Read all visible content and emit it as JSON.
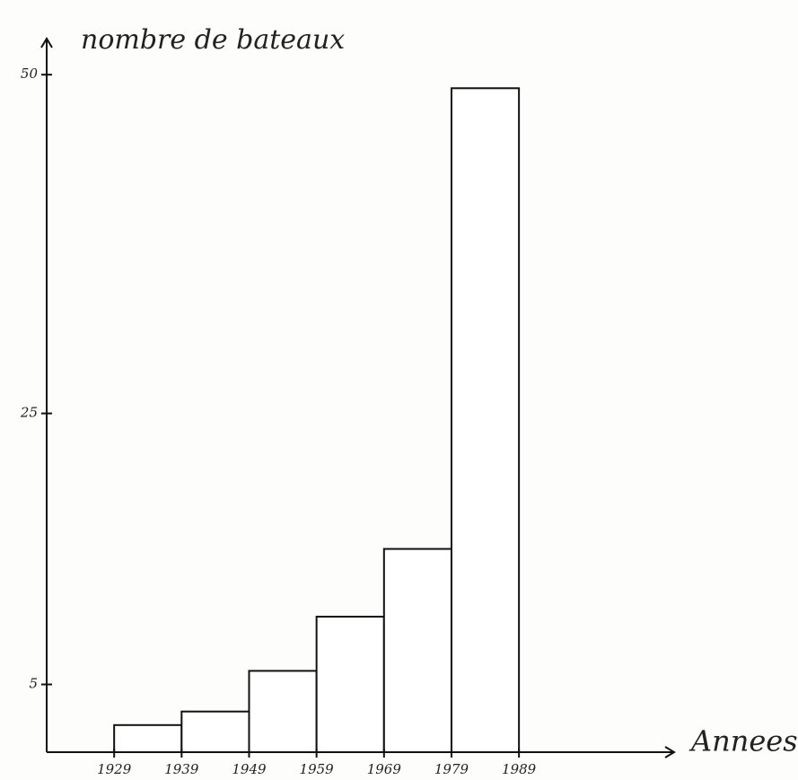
{
  "chart_data": {
    "type": "histogram",
    "y_label": "nombre de bateaux",
    "x_label": "Annees",
    "bins": [
      1929,
      1939,
      1949,
      1959,
      1969,
      1979,
      1989
    ],
    "counts": [
      2,
      3,
      6,
      10,
      15,
      49
    ],
    "color": "#ffffff",
    "xlim": [
      1919,
      2012
    ],
    "ylim": [
      0,
      52
    ],
    "xticks": [
      1929,
      1939,
      1949,
      1959,
      1969,
      1979,
      1989
    ],
    "yticks": [
      5,
      25,
      50
    ]
  }
}
